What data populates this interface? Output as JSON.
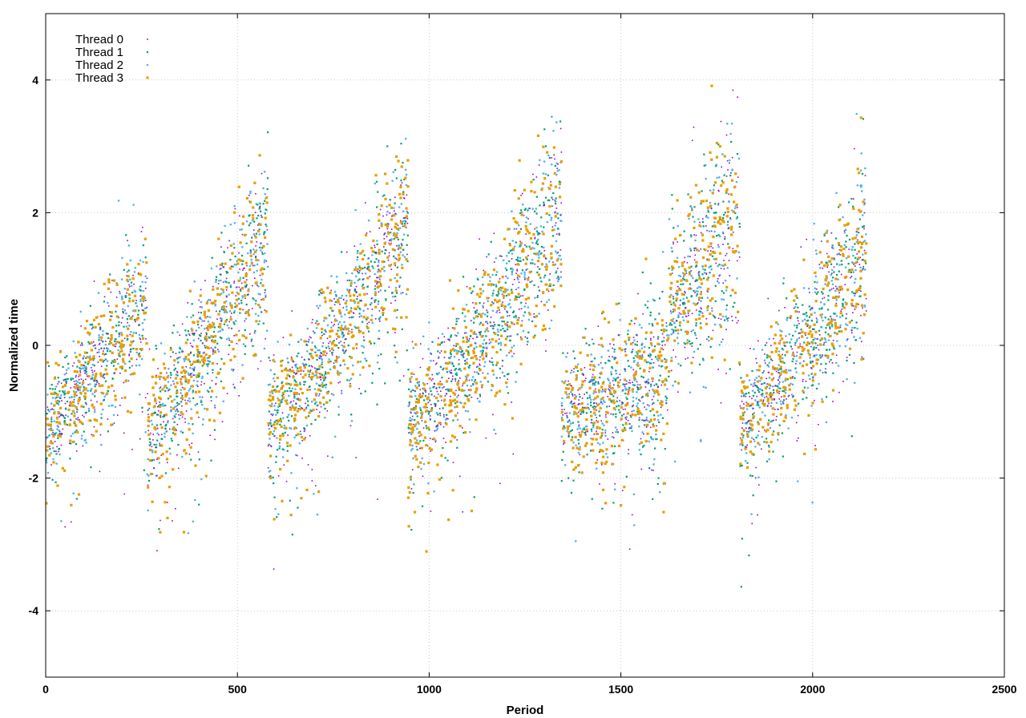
{
  "chart_data": {
    "type": "scatter",
    "xlabel": "Period",
    "ylabel": "Normalized time",
    "xlim": [
      0,
      2500
    ],
    "ylim": [
      -5,
      5
    ],
    "x_ticks": [
      0,
      500,
      1000,
      1500,
      2000,
      2500
    ],
    "y_ticks": [
      -4,
      -2,
      0,
      2,
      4
    ],
    "grid": true,
    "legend_position": "top-left",
    "period_range": [
      0,
      2140
    ],
    "cycles": [
      {
        "start": 0,
        "end": 265,
        "y_start": -1.2,
        "y_end": 0.8,
        "spread": 0.5
      },
      {
        "start": 265,
        "end": 580,
        "y_start": -1.3,
        "y_end": 1.6,
        "spread": 0.6
      },
      {
        "start": 580,
        "end": 945,
        "y_start": -1.2,
        "y_end": 1.8,
        "spread": 0.55
      },
      {
        "start": 945,
        "end": 1345,
        "y_start": -1.2,
        "y_end": 2.0,
        "spread": 0.6
      },
      {
        "start": 1345,
        "end": 1625,
        "y_start": -1.0,
        "y_end": -0.4,
        "spread": 0.55
      },
      {
        "start": 1625,
        "end": 1810,
        "y_start": 0.6,
        "y_end": 2.0,
        "spread": 0.8
      },
      {
        "start": 1810,
        "end": 2140,
        "y_start": -1.2,
        "y_end": 1.5,
        "spread": 0.55
      }
    ],
    "series": [
      {
        "name": "Thread 0",
        "color": "#9400d3",
        "marker": "plus"
      },
      {
        "name": "Thread 1",
        "color": "#009e73",
        "marker": "x"
      },
      {
        "name": "Thread 2",
        "color": "#56b4e9",
        "marker": "dot"
      },
      {
        "name": "Thread 3",
        "color": "#e69f00",
        "marker": "square"
      }
    ]
  }
}
